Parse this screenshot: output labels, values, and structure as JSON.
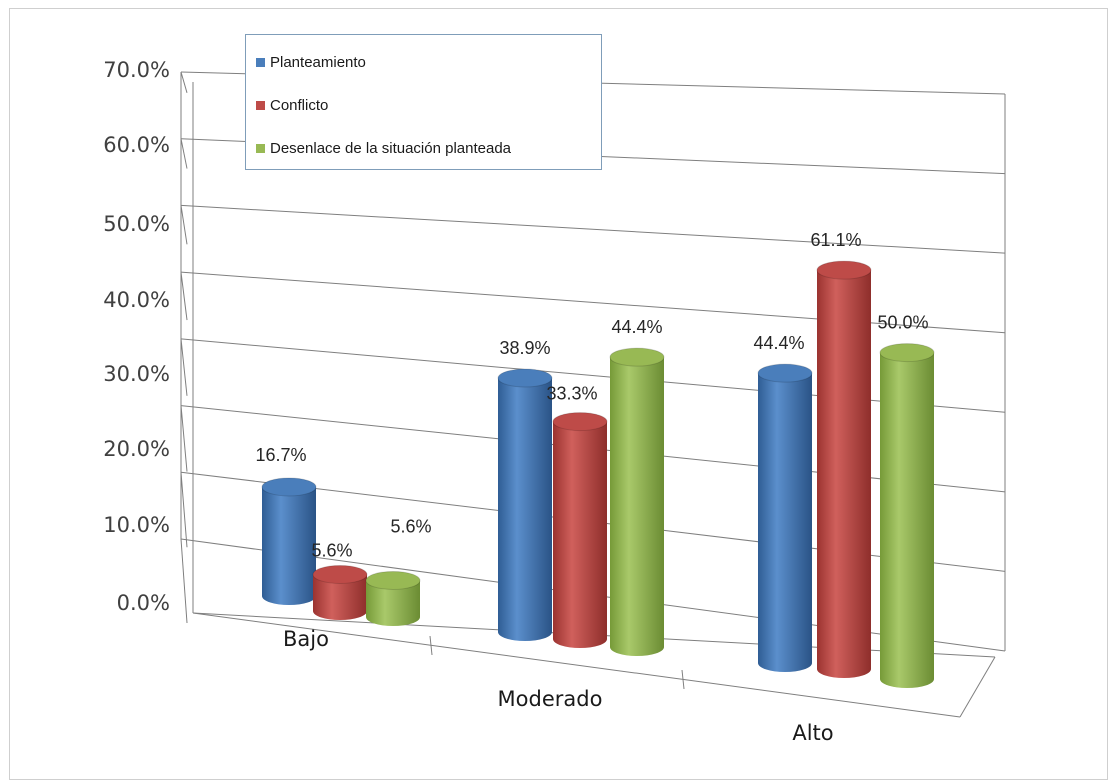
{
  "chart_data": {
    "type": "bar",
    "categories": [
      "Bajo",
      "Moderado",
      "Alto"
    ],
    "series": [
      {
        "name": "Planteamiento",
        "values": [
          16.7,
          38.9,
          44.4
        ],
        "labels": [
          "16.7%",
          "38.9%",
          "44.4%"
        ]
      },
      {
        "name": "Conflicto",
        "values": [
          5.6,
          33.3,
          61.1
        ],
        "labels": [
          "5.6%",
          "33.3%",
          "61.1%"
        ]
      },
      {
        "name": "Desenlace de la situación planteada",
        "values": [
          5.6,
          44.4,
          50.0
        ],
        "labels": [
          "5.6%",
          "44.4%",
          "50.0%"
        ]
      }
    ],
    "yticks": [
      "0.0%",
      "10.0%",
      "20.0%",
      "30.0%",
      "40.0%",
      "50.0%",
      "60.0%",
      "70.0%"
    ],
    "ylim": [
      0,
      70
    ],
    "title": "",
    "xlabel": "",
    "ylabel": "",
    "grid": true,
    "legend_position": "top-left",
    "colors": [
      "#4a7ebb",
      "#be4b48",
      "#98b954"
    ]
  }
}
